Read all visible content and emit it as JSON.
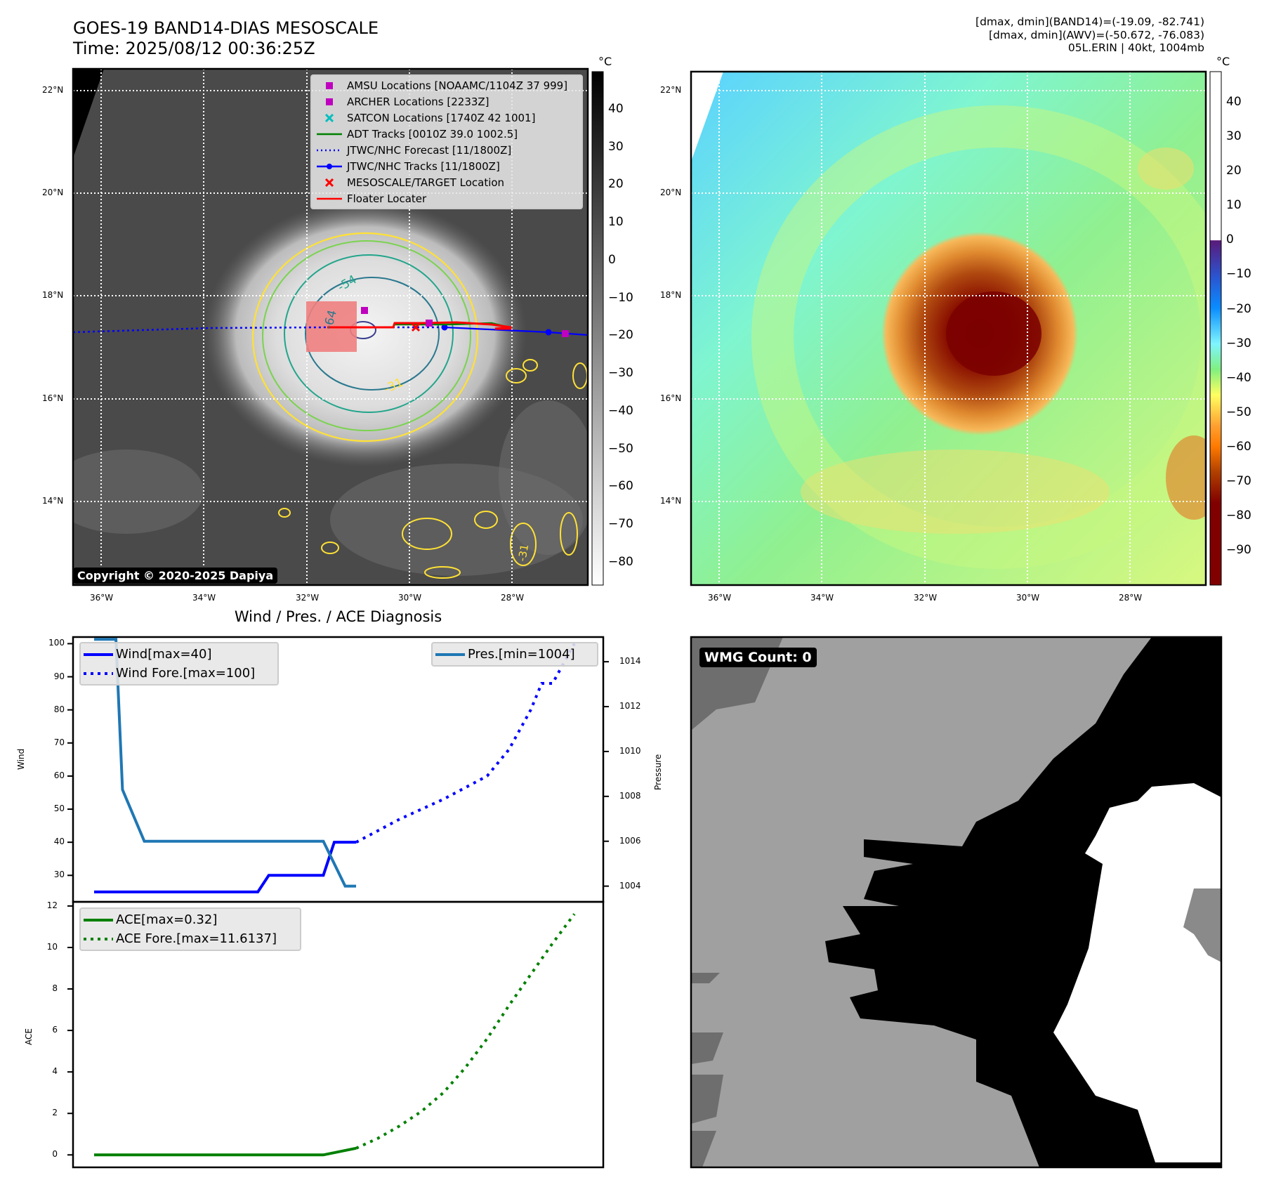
{
  "header": {
    "title_line1": "GOES-19 BAND14-DIAS MESOSCALE",
    "title_line2": "Time: 2025/08/12 00:36:25Z",
    "info_line1": "[dmax, dmin](BAND14)=(-19.09, -82.741)",
    "info_line2": "[dmax, dmin](AWV)=(-50.672, -76.083)",
    "info_line3": "05L.ERIN | 40kt, 1004mb"
  },
  "map_axes": {
    "lat_ticks": [
      "22°N",
      "20°N",
      "18°N",
      "16°N",
      "14°N"
    ],
    "lon_ticks": [
      "36°W",
      "34°W",
      "32°W",
      "30°W",
      "28°W"
    ]
  },
  "left_map": {
    "copyright": "Copyright © 2020-2025 Dapiya",
    "contour_labels": [
      "-54",
      "-64",
      "-31",
      "-31"
    ],
    "legend": [
      {
        "label": "AMSU Locations [NOAAMC/1104Z 37 999]",
        "symbol": "square",
        "color": "#bf00bf"
      },
      {
        "label": "ARCHER Locations [2233Z]",
        "symbol": "square",
        "color": "#bf00bf"
      },
      {
        "label": "SATCON Locations [1740Z 42 1001]",
        "symbol": "x",
        "color": "#00bfbf"
      },
      {
        "label": "ADT Tracks [0010Z 39.0 1002.5]",
        "symbol": "line",
        "color": "#008000"
      },
      {
        "label": "JTWC/NHC Forecast [11/1800Z]",
        "symbol": "dotted",
        "color": "#0000ff"
      },
      {
        "label": "JTWC/NHC Tracks [11/1800Z]",
        "symbol": "line-dot",
        "color": "#0000ff"
      },
      {
        "label": "MESOSCALE/TARGET Location",
        "symbol": "x",
        "color": "#ff0000"
      },
      {
        "label": "Floater Locater",
        "symbol": "line",
        "color": "#ff0000"
      }
    ],
    "colorbar": {
      "unit": "°C",
      "ticks": [
        "40",
        "30",
        "20",
        "10",
        "0",
        "−10",
        "−20",
        "−30",
        "−40",
        "−50",
        "−60",
        "−70",
        "−80"
      ],
      "range": [
        -86,
        50
      ]
    }
  },
  "right_map": {
    "colorbar": {
      "unit": "°C",
      "ticks": [
        "40",
        "30",
        "20",
        "10",
        "0",
        "−10",
        "−20",
        "−30",
        "−40",
        "−50",
        "−60",
        "−70",
        "−80",
        "−90"
      ],
      "range": [
        -100,
        49
      ]
    }
  },
  "wmg": {
    "badge": "WMG Count: 0"
  },
  "colors": {
    "wind": "#0000ff",
    "pressure": "#1f77b4",
    "ace": "#008000",
    "storm_mask": "#f08080"
  },
  "chart_data": [
    {
      "type": "line",
      "title": "Wind / Pres. / ACE Diagnosis",
      "ylabel": "Wind",
      "y2label": "Pressure",
      "ylim": [
        22,
        102
      ],
      "y2lim": [
        1003.3,
        1015.1
      ],
      "yticks": [
        "100",
        "90",
        "80",
        "70",
        "60",
        "50",
        "40",
        "30"
      ],
      "y2ticks": [
        "1014",
        "1012",
        "1010",
        "1008",
        "1006",
        "1004"
      ],
      "xlim": [
        0,
        23
      ],
      "series": [
        {
          "name": "Wind[max=40]",
          "style": "solid",
          "axis": "left",
          "x": [
            0,
            2,
            4,
            6,
            7.5,
            8,
            10,
            10.5,
            11,
            12
          ],
          "y": [
            25,
            25,
            25,
            25,
            25,
            30,
            30,
            30,
            40,
            40
          ]
        },
        {
          "name": "Wind Fore.[max=100]",
          "style": "dotted",
          "axis": "left",
          "x": [
            12,
            14,
            16,
            18,
            19,
            20,
            20.5,
            21,
            22
          ],
          "y": [
            40,
            47,
            53,
            60,
            68,
            80,
            88,
            88,
            100
          ]
        },
        {
          "name": "Pres.[min=1004]",
          "style": "solid",
          "axis": "right",
          "x": [
            0,
            0.5,
            1,
            1.3,
            2.3,
            3.3,
            5,
            7,
            9,
            10.5,
            11.5,
            12
          ],
          "y": [
            1015,
            1015,
            1015,
            1008.3,
            1006,
            1006,
            1006,
            1006,
            1006,
            1006,
            1004,
            1004
          ]
        }
      ]
    },
    {
      "type": "line",
      "ylabel": "ACE",
      "ylim": [
        -0.6,
        12.2
      ],
      "yticks": [
        "12",
        "10",
        "8",
        "6",
        "4",
        "2",
        "0"
      ],
      "xlim": [
        0,
        23
      ],
      "series": [
        {
          "name": "ACE[max=0.32]",
          "style": "solid",
          "x": [
            0,
            3,
            6,
            9,
            10.5,
            12
          ],
          "y": [
            0,
            0,
            0,
            0,
            0,
            0.32
          ]
        },
        {
          "name": "ACE Fore.[max=11.6137]",
          "style": "dotted",
          "x": [
            12,
            13,
            14,
            15,
            16,
            17,
            18,
            19,
            20,
            21,
            22
          ],
          "y": [
            0.32,
            0.8,
            1.4,
            2.1,
            3.0,
            4.2,
            5.6,
            7.2,
            8.7,
            10.2,
            11.6137
          ]
        }
      ]
    }
  ]
}
